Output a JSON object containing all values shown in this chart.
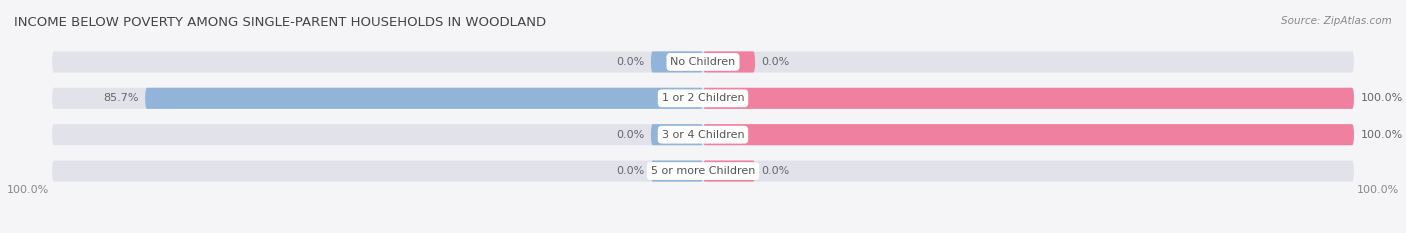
{
  "title": "INCOME BELOW POVERTY AMONG SINGLE-PARENT HOUSEHOLDS IN WOODLAND",
  "source": "Source: ZipAtlas.com",
  "categories": [
    "No Children",
    "1 or 2 Children",
    "3 or 4 Children",
    "5 or more Children"
  ],
  "single_father": [
    0.0,
    85.7,
    0.0,
    0.0
  ],
  "single_mother": [
    0.0,
    100.0,
    100.0,
    0.0
  ],
  "father_color": "#92B4D9",
  "mother_color": "#F080A0",
  "bar_bg_color": "#E2E2EA",
  "bar_height": 0.58,
  "xlim": 100.0,
  "title_fontsize": 9.5,
  "label_fontsize": 8.0,
  "axis_label_fontsize": 8.0,
  "legend_fontsize": 8.0,
  "source_fontsize": 7.5,
  "bottom_left_label": "100.0%",
  "bottom_right_label": "100.0%",
  "background_color": "#F5F5F8",
  "center_label_color": "#555555",
  "value_label_color": "#666666",
  "small_bar_xlim": 8.0
}
